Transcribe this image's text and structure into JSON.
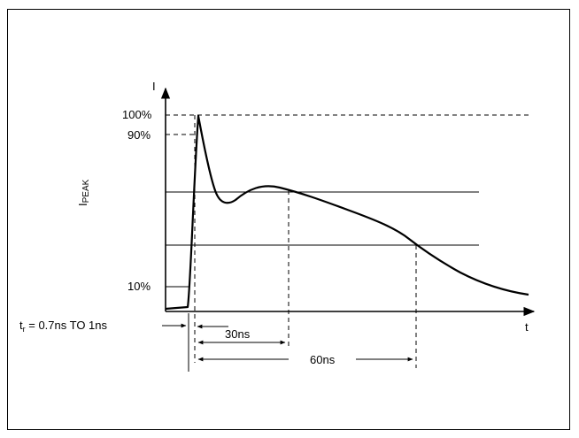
{
  "axes": {
    "y_label": "I",
    "x_label": "t"
  },
  "levels": {
    "top": "100%",
    "p90": "90%",
    "p10": "10%"
  },
  "ipeak": {
    "main": "I",
    "sub": "PEAK"
  },
  "rise_time": {
    "t": "t",
    "sub": "r",
    "rest": " = 0.7ns TO 1ns"
  },
  "intervals": {
    "short": "30ns",
    "long": "60ns"
  }
}
